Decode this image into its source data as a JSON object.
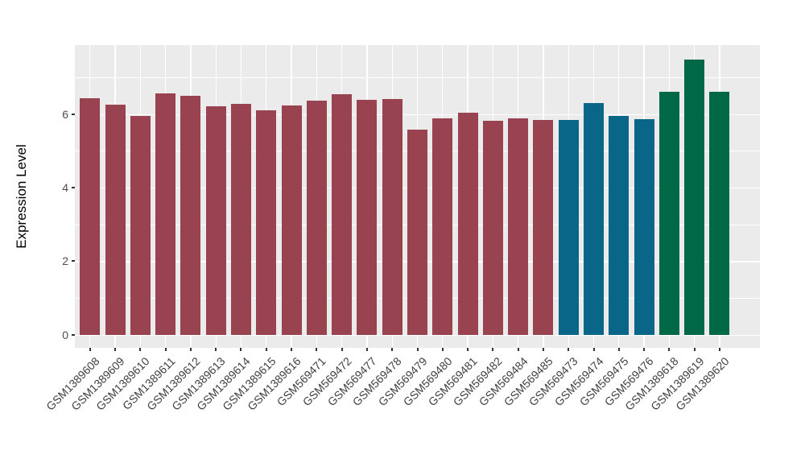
{
  "chart_data": {
    "type": "bar",
    "title": "",
    "xlabel": "",
    "ylabel": "Expression Level",
    "ylim": [
      0,
      7.9
    ],
    "yticks": [
      0,
      2,
      4,
      6
    ],
    "yticks_minor": [
      1,
      3,
      5,
      7
    ],
    "grid": true,
    "legend": false,
    "panel_bg": "#EBEBEB",
    "grid_color": "#FFFFFF",
    "axis_text_color": "#4D4D4D",
    "palette": {
      "maroon": "#9A4350",
      "teal": "#0A6688",
      "green": "#006747"
    },
    "categories": [
      "GSM1389608",
      "GSM1389609",
      "GSM1389610",
      "GSM1389611",
      "GSM1389612",
      "GSM1389613",
      "GSM1389614",
      "GSM1389615",
      "GSM1389616",
      "GSM569471",
      "GSM569472",
      "GSM569477",
      "GSM569478",
      "GSM569479",
      "GSM569480",
      "GSM569481",
      "GSM569482",
      "GSM569484",
      "GSM569485",
      "GSM569473",
      "GSM569474",
      "GSM569475",
      "GSM569476",
      "GSM1389618",
      "GSM1389619",
      "GSM1389620"
    ],
    "values": [
      6.43,
      6.26,
      5.96,
      6.56,
      6.5,
      6.22,
      6.28,
      6.1,
      6.23,
      6.36,
      6.54,
      6.38,
      6.4,
      5.58,
      5.88,
      6.04,
      5.82,
      5.89,
      5.84,
      5.84,
      6.29,
      5.94,
      5.87,
      6.61,
      7.48,
      6.6
    ],
    "groups": [
      "maroon",
      "maroon",
      "maroon",
      "maroon",
      "maroon",
      "maroon",
      "maroon",
      "maroon",
      "maroon",
      "maroon",
      "maroon",
      "maroon",
      "maroon",
      "maroon",
      "maroon",
      "maroon",
      "maroon",
      "maroon",
      "maroon",
      "teal",
      "teal",
      "teal",
      "teal",
      "green",
      "green",
      "green"
    ]
  }
}
